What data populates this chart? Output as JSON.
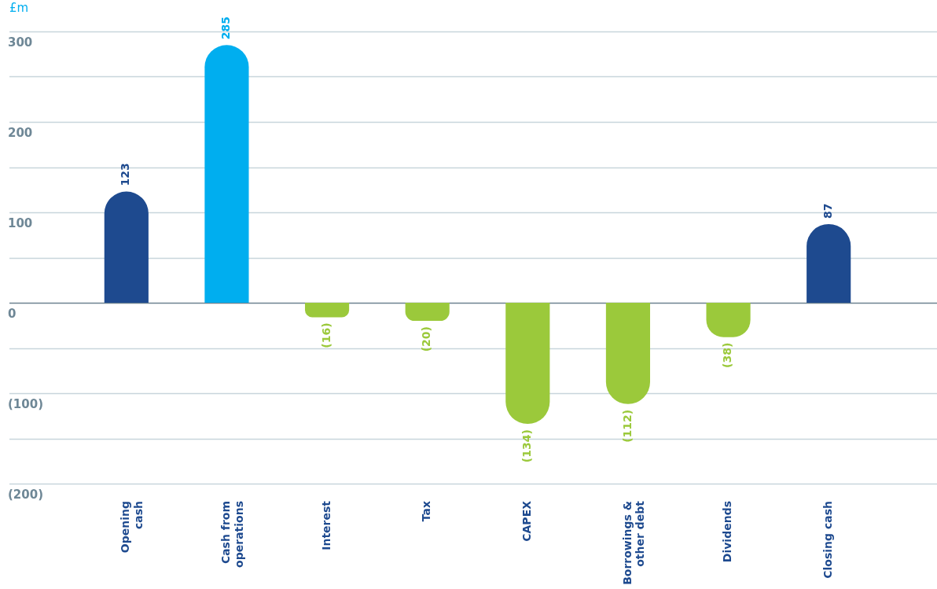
{
  "chart_data": {
    "type": "bar",
    "ylabel": "£m",
    "categories": [
      "Opening\ncash",
      "Cash from\noperations",
      "Interest",
      "Tax",
      "CAPEX",
      "Borrowings &\nother debt",
      "Dividends",
      "Closing cash"
    ],
    "values": [
      123,
      285,
      -16,
      -20,
      -134,
      -112,
      -38,
      87
    ],
    "colors": [
      "#1e4a8f",
      "#00aeef",
      "#9bc93b",
      "#9bc93b",
      "#9bc93b",
      "#9bc93b",
      "#9bc93b",
      "#1e4a8f"
    ],
    "value_labels": [
      "123",
      "285",
      "(16)",
      "(20)",
      "(134)",
      "(112)",
      "(38)",
      "87"
    ],
    "ylim": [
      -200,
      300
    ],
    "yticks": [
      {
        "value": -200,
        "label": "(200)"
      },
      {
        "value": -150,
        "label": null
      },
      {
        "value": -100,
        "label": "(100)"
      },
      {
        "value": -50,
        "label": null
      },
      0,
      {
        "value": 50,
        "label": null
      },
      100,
      {
        "value": 150,
        "label": null
      },
      200,
      {
        "value": 250,
        "label": null
      },
      300
    ],
    "grid": true
  }
}
